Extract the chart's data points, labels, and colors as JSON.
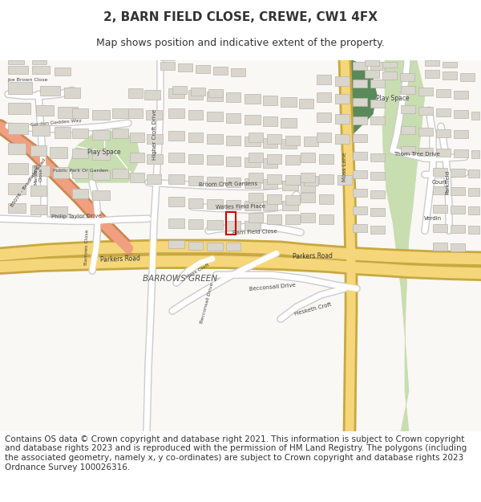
{
  "title": "2, BARN FIELD CLOSE, CREWE, CW1 4FX",
  "subtitle": "Map shows position and indicative extent of the property.",
  "footer": "Contains OS data © Crown copyright and database right 2021. This information is subject to Crown copyright and database rights 2023 and is reproduced with the permission of HM Land Registry. The polygons (including the associated geometry, namely x, y co-ordinates) are subject to Crown copyright and database rights 2023 Ordnance Survey 100026316.",
  "map_bg": "#f9f8f5",
  "road_major_color": "#f5d67a",
  "road_minor_color": "#ffffff",
  "road_outline_color": "#cccccc",
  "road_major_outline": "#c8a840",
  "building_color": "#d9d6ce",
  "building_outline": "#b8b4ac",
  "park_color_light": "#c8ddb0",
  "park_color_dark": "#5a8a5a",
  "highlight_color": "#cc0000",
  "b5076_color": "#f0a080",
  "b5076_outline": "#cc8850",
  "text_color": "#333333",
  "title_fontsize": 11,
  "subtitle_fontsize": 9,
  "footer_fontsize": 7.5
}
